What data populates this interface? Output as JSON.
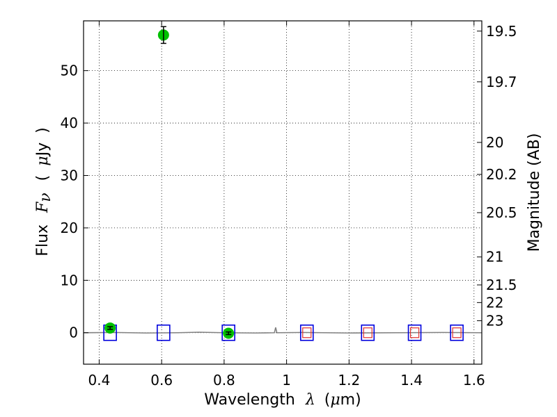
{
  "chart_data": {
    "type": "scatter",
    "title": "",
    "xlabel": {
      "prefix": "Wavelength",
      "lambda": "λ",
      "unit_open": "(",
      "mu": "μ",
      "unit": "m",
      "unit_close": ")"
    },
    "ylabel": {
      "prefix": "Flux",
      "symbol": "F",
      "subscript": "ν",
      "unit_open": "(",
      "mu": "μ",
      "unit": "Jy",
      "unit_close": ")"
    },
    "y2label": "Magnitude (AB)",
    "xlim": [
      0.35,
      1.625
    ],
    "ylim": [
      -6,
      59.5
    ],
    "grid": true,
    "x_ticks": [
      {
        "value": 0.4,
        "label": "0.4"
      },
      {
        "value": 0.6,
        "label": "0.6"
      },
      {
        "value": 0.8,
        "label": "0.8"
      },
      {
        "value": 1.0,
        "label": "1"
      },
      {
        "value": 1.2,
        "label": "1.2"
      },
      {
        "value": 1.4,
        "label": "1.4"
      },
      {
        "value": 1.6,
        "label": "1.6"
      }
    ],
    "y_ticks": [
      {
        "value": 0,
        "label": "0"
      },
      {
        "value": 10,
        "label": "10"
      },
      {
        "value": 20,
        "label": "20"
      },
      {
        "value": 30,
        "label": "30"
      },
      {
        "value": 40,
        "label": "40"
      },
      {
        "value": 50,
        "label": "50"
      }
    ],
    "magnitude_ticks": [
      {
        "mag": 19.5,
        "label": "19.5"
      },
      {
        "mag": 19.7,
        "label": "19.7"
      },
      {
        "mag": 20.0,
        "label": "20"
      },
      {
        "mag": 20.2,
        "label": "20.2"
      },
      {
        "mag": 20.5,
        "label": "20.5"
      },
      {
        "mag": 21.0,
        "label": "21"
      },
      {
        "mag": 21.5,
        "label": "21.5"
      },
      {
        "mag": 22.0,
        "label": "22"
      },
      {
        "mag": 23.0,
        "label": "23"
      }
    ],
    "series": [
      {
        "marker": "circle",
        "color": "#00c000",
        "points": [
          {
            "x": 0.435,
            "y": 0.9,
            "err": 0.25
          },
          {
            "x": 0.606,
            "y": 56.8,
            "err": 1.6
          },
          {
            "x": 0.814,
            "y": -0.1,
            "err": 0.25
          }
        ]
      },
      {
        "marker": "open-square",
        "color": "#0000dd",
        "points": [
          {
            "x": 0.435,
            "y": 0.0
          },
          {
            "x": 0.606,
            "y": 0.0
          },
          {
            "x": 0.814,
            "y": 0.0
          },
          {
            "x": 1.065,
            "y": 0.0
          },
          {
            "x": 1.26,
            "y": 0.0
          },
          {
            "x": 1.41,
            "y": 0.0
          },
          {
            "x": 1.545,
            "y": 0.0
          }
        ]
      },
      {
        "marker": "open-square-small",
        "color": "#e03030",
        "points": [
          {
            "x": 1.065,
            "y": 0.0
          },
          {
            "x": 1.26,
            "y": 0.0
          },
          {
            "x": 1.41,
            "y": 0.0
          },
          {
            "x": 1.545,
            "y": 0.0
          }
        ]
      },
      {
        "marker": "line",
        "color": "#808080",
        "spike_x": 0.965,
        "spike_y": 1.0,
        "x": [
          0.35,
          0.45,
          0.55,
          0.65,
          0.72,
          0.8,
          0.9,
          0.96,
          0.97,
          1.05,
          1.2,
          1.35,
          1.5,
          1.625
        ],
        "y": [
          0.0,
          0.05,
          -0.05,
          0.0,
          0.1,
          0.0,
          -0.05,
          0.0,
          0.0,
          0.05,
          -0.05,
          0.0,
          0.05,
          0.0
        ]
      }
    ]
  }
}
